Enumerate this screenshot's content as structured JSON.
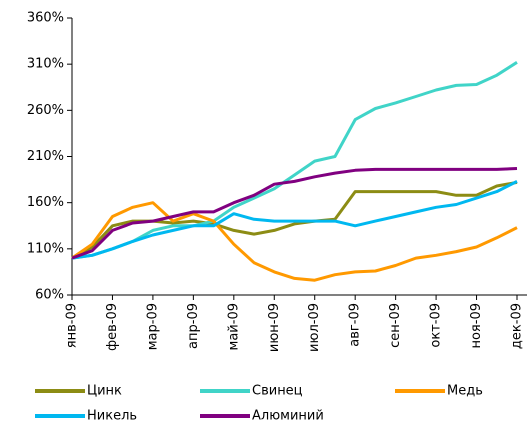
{
  "chart_data": {
    "type": "line",
    "categories": [
      "янв-09",
      null,
      "фев-09",
      null,
      "мар-09",
      null,
      "апр-09",
      null,
      "май-09",
      null,
      "июн-09",
      null,
      "июл-09",
      null,
      "авг-09",
      null,
      "сен-09",
      null,
      "окт-09",
      null,
      "ноя-09",
      null,
      "дек-09"
    ],
    "series": [
      {
        "name": "Цинк",
        "color": "#8c8c14",
        "values": [
          100,
          112,
          135,
          140,
          140,
          138,
          140,
          137,
          130,
          126,
          130,
          137,
          140,
          142,
          172,
          172,
          172,
          172,
          172,
          168,
          168,
          178,
          182
        ]
      },
      {
        "name": "Свинец",
        "color": "#40d4c8",
        "values": [
          100,
          103,
          110,
          118,
          130,
          135,
          135,
          140,
          155,
          165,
          175,
          190,
          205,
          210,
          250,
          262,
          268,
          275,
          282,
          287,
          288,
          298,
          312
        ]
      },
      {
        "name": "Медь",
        "color": "#ff9900",
        "values": [
          100,
          115,
          145,
          155,
          160,
          140,
          148,
          140,
          115,
          95,
          85,
          78,
          76,
          82,
          85,
          86,
          92,
          100,
          103,
          107,
          112,
          122,
          133
        ]
      },
      {
        "name": "Никель",
        "color": "#00b8f0",
        "values": [
          100,
          103,
          110,
          118,
          125,
          130,
          135,
          135,
          148,
          142,
          140,
          140,
          140,
          140,
          135,
          140,
          145,
          150,
          155,
          158,
          165,
          172,
          183
        ]
      },
      {
        "name": "Алюминий",
        "color": "#800080",
        "values": [
          100,
          108,
          130,
          138,
          140,
          145,
          150,
          150,
          160,
          168,
          180,
          183,
          188,
          192,
          195,
          196,
          196,
          196,
          196,
          196,
          196,
          196,
          197
        ]
      }
    ],
    "ylim": [
      60,
      360
    ],
    "yticks": [
      {
        "value": 60,
        "label": "60%"
      },
      {
        "value": 110,
        "label": "110%"
      },
      {
        "value": 160,
        "label": "160%"
      },
      {
        "value": 210,
        "label": "210%"
      },
      {
        "value": 260,
        "label": "260%"
      },
      {
        "value": 310,
        "label": "310%"
      },
      {
        "value": 360,
        "label": "360%"
      }
    ],
    "grid": false,
    "legend": "bottom"
  }
}
